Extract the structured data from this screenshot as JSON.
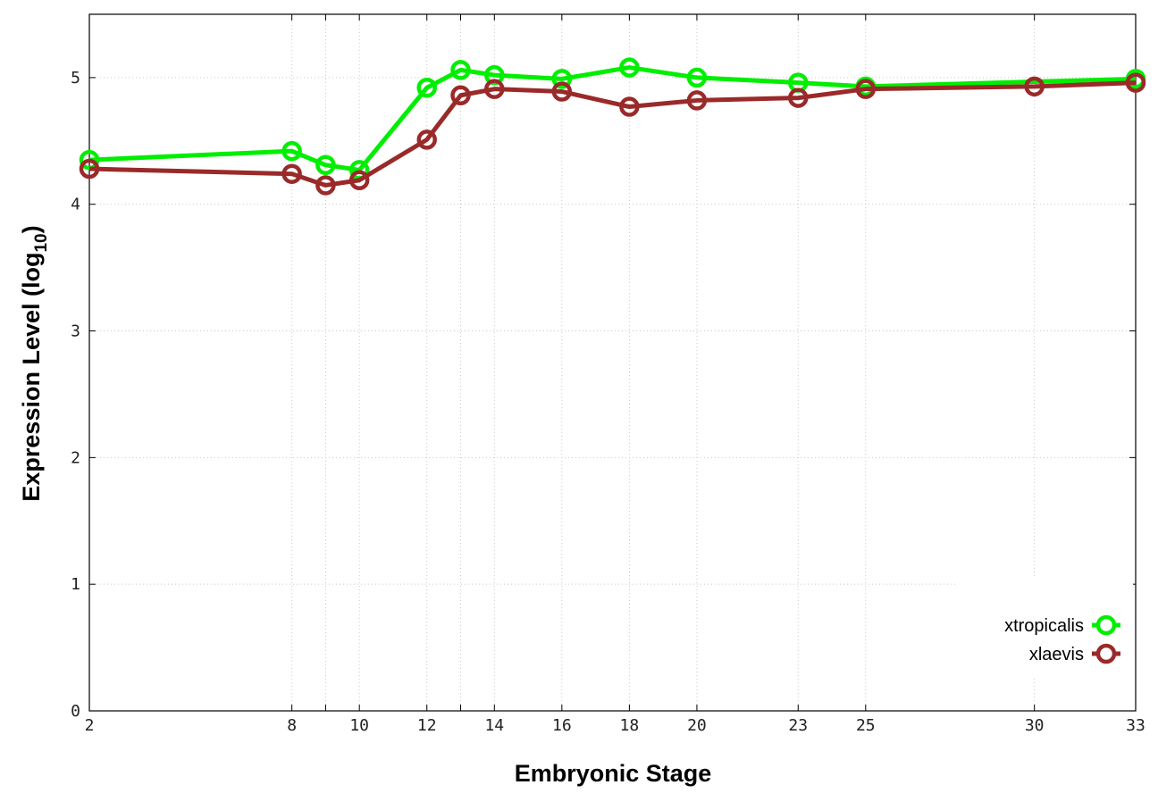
{
  "chart_data": {
    "type": "line",
    "xlabel": "Embryonic Stage",
    "ylabel_main": "Expression Level (log",
    "ylabel_sub": "10",
    "ylabel_close": ")",
    "xlim": [
      2,
      33
    ],
    "ylim": [
      0,
      5.5
    ],
    "x_ticks": [
      2,
      8,
      9,
      10,
      12,
      13,
      14,
      16,
      18,
      20,
      23,
      25,
      30,
      33
    ],
    "x_tick_labels": [
      "2",
      "8",
      "10",
      "12",
      "14",
      "16",
      "18",
      "20",
      "23",
      "25",
      "30",
      "33"
    ],
    "x_tick_label_values": [
      2,
      8,
      10,
      12,
      14,
      16,
      18,
      20,
      23,
      25,
      30,
      33
    ],
    "y_ticks": [
      0,
      1,
      2,
      3,
      4,
      5
    ],
    "y_tick_labels": [
      "0",
      "1",
      "2",
      "3",
      "4",
      "5"
    ],
    "grid": true,
    "legend_position": "bottom-right",
    "x": [
      2,
      8,
      9,
      10,
      12,
      13,
      14,
      16,
      18,
      20,
      23,
      25,
      30,
      33
    ],
    "series": [
      {
        "name": "xtropicalis",
        "color": "#00ee00",
        "x": [
          2,
          8,
          9,
          10,
          12,
          13,
          14,
          16,
          18,
          20,
          23,
          25,
          33
        ],
        "values": [
          4.35,
          4.42,
          4.31,
          4.27,
          4.92,
          5.06,
          5.02,
          4.99,
          5.08,
          5.0,
          4.96,
          4.93,
          4.99
        ]
      },
      {
        "name": "xlaevis",
        "color": "#9a2a2a",
        "x": [
          2,
          8,
          9,
          10,
          12,
          13,
          14,
          16,
          18,
          20,
          23,
          25,
          30,
          33
        ],
        "values": [
          4.28,
          4.24,
          4.15,
          4.19,
          4.51,
          4.86,
          4.91,
          4.89,
          4.77,
          4.82,
          4.84,
          4.91,
          4.93,
          4.96
        ]
      }
    ]
  }
}
